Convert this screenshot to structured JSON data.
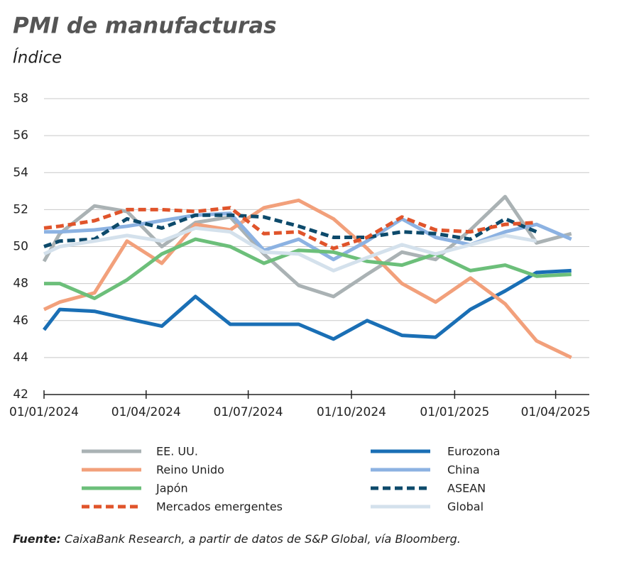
{
  "chart_data": {
    "type": "line",
    "title": "PMI de manufacturas",
    "subtitle": "Índice",
    "x": [
      "2024-01-01",
      "2024-01-15",
      "2024-02-15",
      "2024-03-15",
      "2024-04-15",
      "2024-05-15",
      "2024-06-15",
      "2024-07-15",
      "2024-08-15",
      "2024-09-15",
      "2024-10-15",
      "2024-11-15",
      "2024-12-15",
      "2025-01-15",
      "2025-02-15",
      "2025-03-15",
      "2025-04-15"
    ],
    "xlim": [
      "2024-01-01",
      "2025-05-01"
    ],
    "xticks": [
      {
        "value": "2024-01-01",
        "label": "01/01/2024"
      },
      {
        "value": "2024-04-01",
        "label": "01/04/2024"
      },
      {
        "value": "2024-07-01",
        "label": "01/07/2024"
      },
      {
        "value": "2024-10-01",
        "label": "01/10/2024"
      },
      {
        "value": "2025-01-01",
        "label": "01/01/2025"
      },
      {
        "value": "2025-04-01",
        "label": "01/04/2025"
      }
    ],
    "ylim": [
      42,
      58
    ],
    "yticks": [
      42,
      44,
      46,
      48,
      50,
      52,
      54,
      56,
      58
    ],
    "grid": true,
    "series": [
      {
        "name": "EE. UU.",
        "color": "#aab2b4",
        "style": "solid",
        "values": [
          49.2,
          50.7,
          52.2,
          51.9,
          50.0,
          51.3,
          51.6,
          49.6,
          47.9,
          47.3,
          48.5,
          49.7,
          49.3,
          50.9,
          52.7,
          50.2,
          50.7
        ]
      },
      {
        "name": "Eurozona",
        "color": "#1a6fb5",
        "style": "solid",
        "values": [
          45.5,
          46.6,
          46.5,
          46.1,
          45.7,
          47.3,
          45.8,
          45.8,
          45.8,
          45.0,
          46.0,
          45.2,
          45.1,
          46.6,
          47.6,
          48.6,
          48.7
        ]
      },
      {
        "name": "Reino Unido",
        "color": "#f2a07b",
        "style": "solid",
        "values": [
          46.6,
          47.0,
          47.5,
          50.3,
          49.1,
          51.2,
          50.9,
          52.1,
          52.5,
          51.5,
          49.9,
          48.0,
          47.0,
          48.3,
          46.9,
          44.9,
          44.0
        ]
      },
      {
        "name": "China",
        "color": "#8cb2e2",
        "style": "solid",
        "values": [
          50.8,
          50.8,
          50.9,
          51.1,
          51.4,
          51.7,
          51.8,
          49.8,
          50.4,
          49.3,
          50.3,
          51.5,
          50.5,
          50.1,
          50.8,
          51.2,
          50.4
        ]
      },
      {
        "name": "Japón",
        "color": "#6cbf7a",
        "style": "solid",
        "values": [
          48.0,
          48.0,
          47.2,
          48.2,
          49.6,
          50.4,
          50.0,
          49.1,
          49.8,
          49.7,
          49.2,
          49.0,
          49.6,
          48.7,
          49.0,
          48.4,
          48.5
        ]
      },
      {
        "name": "ASEAN",
        "color": "#0d4a6b",
        "style": "dashed",
        "values": [
          50.0,
          50.3,
          50.4,
          51.5,
          51.0,
          51.7,
          51.7,
          51.6,
          51.1,
          50.5,
          50.5,
          50.8,
          50.7,
          50.4,
          51.5,
          50.8,
          null
        ]
      },
      {
        "name": "Mercados emergentes",
        "color": "#e0542b",
        "style": "dashed",
        "values": [
          51.0,
          51.1,
          51.4,
          52.0,
          52.0,
          51.9,
          52.1,
          50.7,
          50.8,
          49.9,
          50.5,
          51.6,
          50.9,
          50.8,
          51.2,
          51.3,
          null
        ]
      },
      {
        "name": "Global",
        "color": "#d4e1ec",
        "style": "solid",
        "values": [
          49.6,
          50.0,
          50.3,
          50.6,
          50.3,
          51.0,
          50.8,
          49.7,
          49.6,
          48.7,
          49.4,
          50.1,
          49.6,
          50.1,
          50.6,
          50.3,
          null
        ]
      }
    ],
    "source": {
      "label": "Fuente:",
      "text": "CaixaBank Research, a partir de datos de S&P Global, vía Bloomberg."
    }
  }
}
